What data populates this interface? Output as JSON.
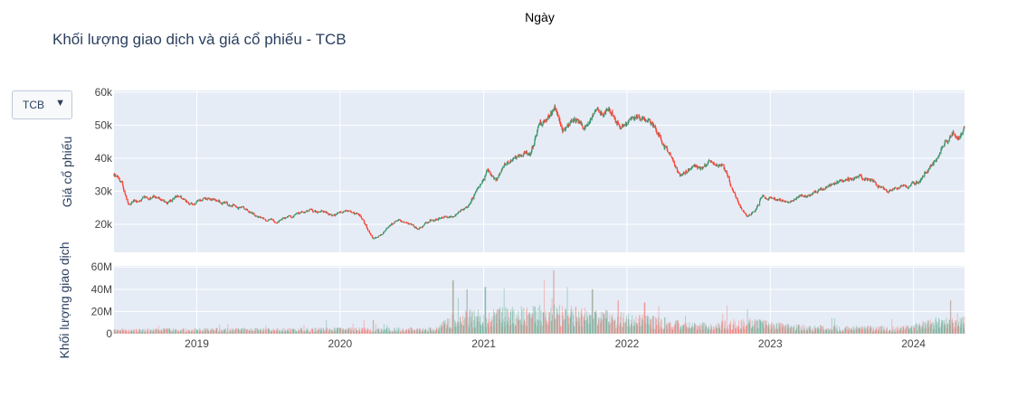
{
  "header": {
    "xaxis_title": "Ngày",
    "title": "Khối lượng giao dịch và giá cổ phiếu - TCB"
  },
  "dropdown": {
    "selected": "TCB",
    "arrow": "▼"
  },
  "chart_data": [
    {
      "type": "candlestick",
      "ylabel": "Giá cổ phiếu",
      "ylim": [
        11500,
        60500
      ],
      "yticks": [
        20000,
        30000,
        40000,
        50000,
        60000
      ],
      "ytick_labels": [
        "20k",
        "30k",
        "40k",
        "50k",
        "60k"
      ],
      "x_range": [
        "2018-06-04",
        "2024-05-10"
      ],
      "grid": true,
      "up_color": "#3D9970",
      "down_color": "#FF4136",
      "price_path": [
        [
          "2018-06-04",
          35000
        ],
        [
          "2018-06-25",
          32000
        ],
        [
          "2018-07-10",
          26500
        ],
        [
          "2018-08-10",
          27000
        ],
        [
          "2018-09-10",
          28500
        ],
        [
          "2018-10-15",
          26500
        ],
        [
          "2018-11-20",
          28200
        ],
        [
          "2018-12-20",
          26000
        ],
        [
          "2019-01-20",
          27500
        ],
        [
          "2019-03-01",
          27000
        ],
        [
          "2019-04-10",
          25500
        ],
        [
          "2019-05-20",
          23500
        ],
        [
          "2019-06-20",
          21200
        ],
        [
          "2019-07-20",
          20800
        ],
        [
          "2019-09-01",
          22500
        ],
        [
          "2019-10-15",
          24500
        ],
        [
          "2019-11-15",
          23500
        ],
        [
          "2019-12-20",
          23000
        ],
        [
          "2020-01-20",
          23500
        ],
        [
          "2020-02-20",
          22500
        ],
        [
          "2020-03-10",
          18500
        ],
        [
          "2020-03-25",
          15500
        ],
        [
          "2020-04-20",
          17500
        ],
        [
          "2020-05-20",
          21000
        ],
        [
          "2020-06-15",
          21000
        ],
        [
          "2020-07-20",
          19000
        ],
        [
          "2020-08-20",
          21000
        ],
        [
          "2020-09-20",
          22000
        ],
        [
          "2020-10-20",
          23000
        ],
        [
          "2020-11-20",
          25500
        ],
        [
          "2020-12-20",
          31000
        ],
        [
          "2021-01-10",
          36000
        ],
        [
          "2021-02-01",
          33000
        ],
        [
          "2021-03-01",
          39000
        ],
        [
          "2021-04-01",
          41000
        ],
        [
          "2021-05-01",
          42000
        ],
        [
          "2021-05-20",
          48500
        ],
        [
          "2021-06-15",
          53500
        ],
        [
          "2021-07-01",
          56000
        ],
        [
          "2021-07-20",
          48000
        ],
        [
          "2021-08-15",
          52000
        ],
        [
          "2021-09-15",
          49500
        ],
        [
          "2021-10-15",
          53500
        ],
        [
          "2021-11-15",
          54000
        ],
        [
          "2021-12-15",
          50500
        ],
        [
          "2022-01-10",
          51500
        ],
        [
          "2022-02-01",
          52500
        ],
        [
          "2022-03-01",
          50500
        ],
        [
          "2022-03-20",
          49000
        ],
        [
          "2022-04-20",
          41000
        ],
        [
          "2022-05-15",
          34000
        ],
        [
          "2022-06-10",
          37000
        ],
        [
          "2022-07-10",
          37500
        ],
        [
          "2022-08-10",
          39000
        ],
        [
          "2022-09-01",
          38000
        ],
        [
          "2022-09-25",
          31000
        ],
        [
          "2022-10-20",
          24500
        ],
        [
          "2022-11-05",
          22000
        ],
        [
          "2022-11-20",
          23500
        ],
        [
          "2022-12-10",
          28500
        ],
        [
          "2023-01-10",
          28000
        ],
        [
          "2023-02-20",
          27000
        ],
        [
          "2023-03-20",
          28500
        ],
        [
          "2023-04-20",
          29500
        ],
        [
          "2023-05-20",
          30500
        ],
        [
          "2023-06-20",
          33000
        ],
        [
          "2023-07-20",
          33500
        ],
        [
          "2023-08-20",
          35000
        ],
        [
          "2023-09-20",
          33000
        ],
        [
          "2023-10-20",
          30000
        ],
        [
          "2023-11-20",
          31000
        ],
        [
          "2023-12-20",
          31500
        ],
        [
          "2024-01-20",
          34500
        ],
        [
          "2024-02-20",
          38500
        ],
        [
          "2024-03-10",
          42500
        ],
        [
          "2024-03-25",
          45000
        ],
        [
          "2024-04-10",
          47500
        ],
        [
          "2024-04-25",
          46000
        ],
        [
          "2024-05-10",
          48500
        ]
      ]
    },
    {
      "type": "bar",
      "ylabel": "Khối lượng giao dịch",
      "ylim": [
        0,
        61000000
      ],
      "yticks": [
        0,
        20000000,
        40000000,
        60000000
      ],
      "ytick_labels": [
        "0",
        "20M",
        "40M",
        "60M"
      ],
      "x_range": [
        "2018-06-04",
        "2024-05-10"
      ],
      "xticks": [
        "2019-01-01",
        "2020-01-01",
        "2021-01-01",
        "2022-01-01",
        "2023-01-01",
        "2024-01-01"
      ],
      "xtick_labels": [
        "2019",
        "2020",
        "2021",
        "2022",
        "2023",
        "2024"
      ],
      "grid": true,
      "volume_level": [
        [
          "2018-06-04",
          3000000
        ],
        [
          "2020-09-01",
          3500000
        ],
        [
          "2020-10-20",
          12000000
        ],
        [
          "2021-01-10",
          14000000
        ],
        [
          "2021-06-01",
          16000000
        ],
        [
          "2021-09-01",
          15000000
        ],
        [
          "2021-12-01",
          12000000
        ],
        [
          "2022-04-01",
          9000000
        ],
        [
          "2022-07-01",
          6000000
        ],
        [
          "2022-11-01",
          9000000
        ],
        [
          "2023-03-01",
          5000000
        ],
        [
          "2023-12-01",
          4000000
        ],
        [
          "2024-03-01",
          9000000
        ],
        [
          "2024-05-10",
          10000000
        ]
      ],
      "volume_spikes": [
        [
          "2020-10-15",
          48000000
        ],
        [
          "2020-11-20",
          40000000
        ],
        [
          "2021-01-05",
          42000000
        ],
        [
          "2021-06-28",
          57000000
        ],
        [
          "2021-06-05",
          48000000
        ],
        [
          "2021-08-01",
          42000000
        ],
        [
          "2021-10-05",
          40000000
        ],
        [
          "2021-12-10",
          30000000
        ],
        [
          "2022-02-15",
          28000000
        ],
        [
          "2022-11-05",
          22000000
        ],
        [
          "2024-04-05",
          30000000
        ]
      ]
    }
  ]
}
